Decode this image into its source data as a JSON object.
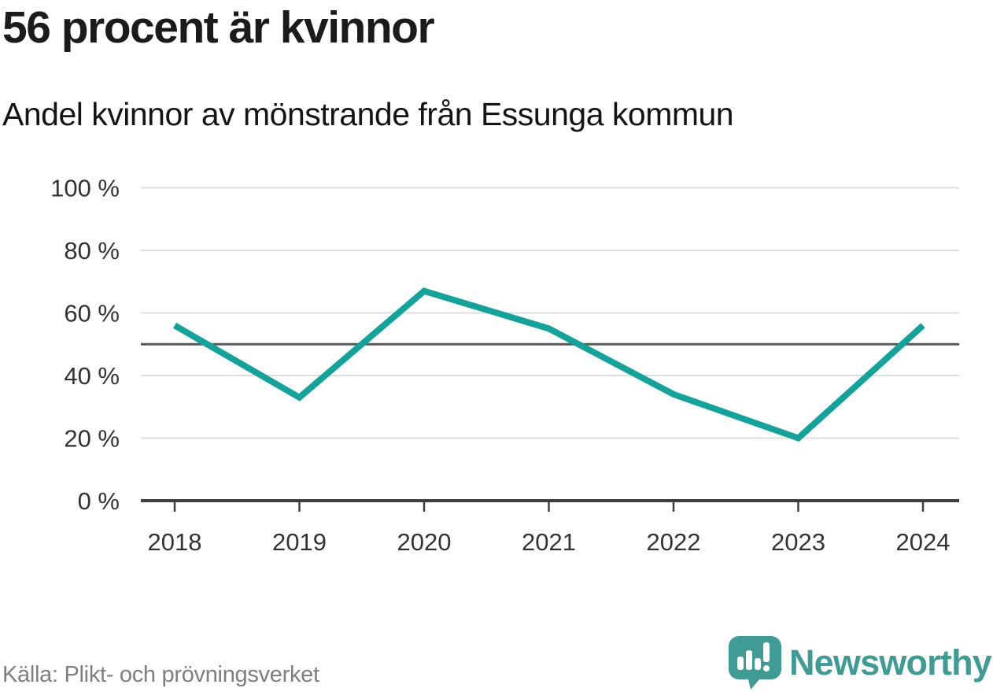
{
  "header": {
    "title": "56 procent är kvinnor",
    "subtitle": "Andel kvinnor av mönstrande från Essunga kommun"
  },
  "chart_data": {
    "type": "line",
    "title": "56 procent är kvinnor",
    "subtitle": "Andel kvinnor av mönstrande från Essunga kommun",
    "categories": [
      "2018",
      "2019",
      "2020",
      "2021",
      "2022",
      "2023",
      "2024"
    ],
    "series": [
      {
        "name": "Andel kvinnor av mönstrande",
        "values": [
          56,
          33,
          67,
          55,
          34,
          20,
          56
        ]
      }
    ],
    "xlabel": "",
    "ylabel": "",
    "ylim": [
      0,
      100
    ],
    "yticks": [
      0,
      20,
      40,
      60,
      80,
      100
    ],
    "ytick_suffix": " %",
    "reference_line": 50,
    "grid": true,
    "legend_position": "none",
    "line_color": "#12a39b",
    "gridline_color": "#dedede",
    "reference_line_color": "#58585a",
    "axis_color": "#3f3f3f",
    "tick_label_color": "#333333"
  },
  "footer": {
    "source": "Källa: Plikt- och prövningsverket",
    "brand": "Newsworthy"
  },
  "icons": {
    "logo": "newsworthy-speech-bubble-bar-chart-icon"
  },
  "colors": {
    "accent_teal": "#12a39b",
    "brand_teal": "#3e9c95",
    "title_text": "#1b1b1b",
    "source_text": "#7f7f7f",
    "background": "#ffffff"
  }
}
